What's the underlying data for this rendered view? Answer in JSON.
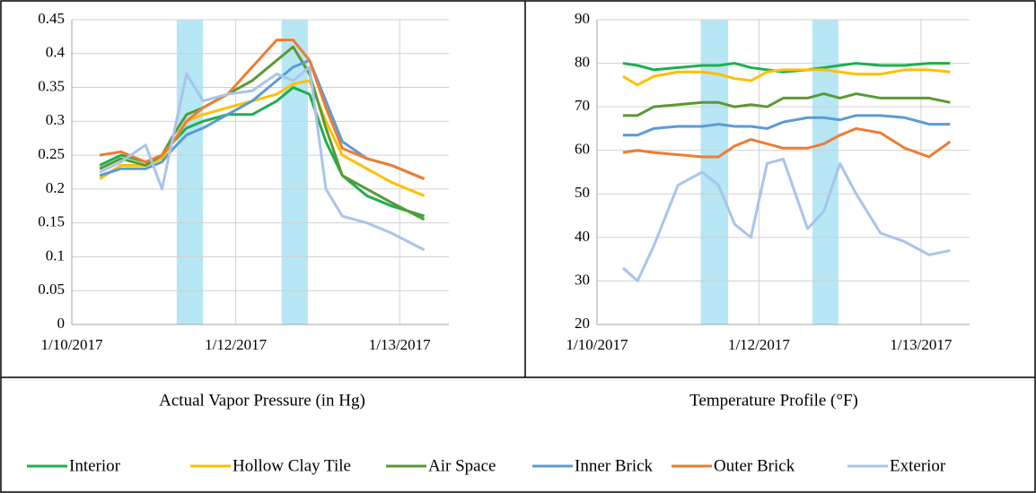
{
  "chart_data": [
    {
      "type": "line",
      "title": "Actual Vapor Pressure (in Hg)",
      "x": [
        0.17,
        0.3,
        0.45,
        0.55,
        0.62,
        0.7,
        0.8,
        0.95,
        1.1,
        1.25,
        1.35,
        1.45,
        1.55,
        1.65,
        1.8,
        1.95,
        2.15
      ],
      "xlim": [
        0,
        2.3
      ],
      "xticks": [
        {
          "value": 0,
          "label": "1/10/2017"
        },
        {
          "value": 1,
          "label": "1/12/2017"
        },
        {
          "value": 2,
          "label": "1/13/2017"
        }
      ],
      "ylim": [
        0,
        0.45
      ],
      "yticks": [
        0,
        0.05,
        0.1,
        0.15,
        0.2,
        0.25,
        0.3,
        0.35,
        0.4,
        0.45
      ],
      "grid": true,
      "band_color": "#b7e6f5",
      "bands": [
        [
          0.64,
          0.8
        ],
        [
          1.28,
          1.44
        ]
      ],
      "series": [
        {
          "name": "Interior",
          "color": "#1fae4f",
          "values": [
            0.235,
            0.25,
            0.24,
            0.25,
            0.27,
            0.29,
            0.3,
            0.31,
            0.31,
            0.33,
            0.35,
            0.34,
            0.27,
            0.22,
            0.19,
            0.175,
            0.16
          ]
        },
        {
          "name": "Hollow Clay Tile",
          "color": "#ffc000",
          "values": [
            0.215,
            0.235,
            0.235,
            0.245,
            0.27,
            0.3,
            0.31,
            0.32,
            0.33,
            0.34,
            0.355,
            0.36,
            0.3,
            0.25,
            0.23,
            0.21,
            0.19
          ]
        },
        {
          "name": "Air Space",
          "color": "#5a9a32",
          "values": [
            0.23,
            0.245,
            0.235,
            0.25,
            0.28,
            0.31,
            0.32,
            0.34,
            0.36,
            0.39,
            0.41,
            0.37,
            0.29,
            0.22,
            0.2,
            0.18,
            0.155
          ]
        },
        {
          "name": "Inner Brick",
          "color": "#5b9bd5",
          "values": [
            0.22,
            0.23,
            0.23,
            0.24,
            0.26,
            0.28,
            0.29,
            0.31,
            0.33,
            0.36,
            0.38,
            0.39,
            0.33,
            0.27,
            0.245,
            0.235,
            0.215
          ]
        },
        {
          "name": "Outer Brick",
          "color": "#ed7d31",
          "values": [
            0.25,
            0.255,
            0.24,
            0.25,
            0.27,
            0.3,
            0.32,
            0.34,
            0.38,
            0.42,
            0.42,
            0.39,
            0.32,
            0.26,
            0.245,
            0.235,
            0.215
          ]
        },
        {
          "name": "Exterior",
          "color": "#a9c4eb",
          "values": [
            0.225,
            0.24,
            0.265,
            0.2,
            0.28,
            0.37,
            0.33,
            0.34,
            0.345,
            0.37,
            0.36,
            0.38,
            0.2,
            0.16,
            0.15,
            0.135,
            0.11
          ]
        }
      ]
    },
    {
      "type": "line",
      "title": "Temperature Profile (°F)",
      "x": [
        0.16,
        0.25,
        0.35,
        0.5,
        0.65,
        0.75,
        0.85,
        0.95,
        1.05,
        1.15,
        1.3,
        1.4,
        1.5,
        1.6,
        1.75,
        1.9,
        2.05,
        2.18
      ],
      "xlim": [
        0,
        2.3
      ],
      "xticks": [
        {
          "value": 0,
          "label": "1/10/2017"
        },
        {
          "value": 1,
          "label": "1/12/2017"
        },
        {
          "value": 2,
          "label": "1/13/2017"
        }
      ],
      "ylim": [
        20,
        90
      ],
      "yticks": [
        20,
        30,
        40,
        50,
        60,
        70,
        80,
        90
      ],
      "grid": true,
      "band_color": "#b7e6f5",
      "bands": [
        [
          0.64,
          0.81
        ],
        [
          1.33,
          1.49
        ]
      ],
      "series": [
        {
          "name": "Interior",
          "color": "#1fae4f",
          "values": [
            80,
            79.5,
            78.5,
            79,
            79.5,
            79.5,
            80,
            79,
            78.5,
            78,
            78.5,
            79,
            79.5,
            80,
            79.5,
            79.5,
            80,
            80
          ]
        },
        {
          "name": "Hollow Clay Tile",
          "color": "#ffc000",
          "values": [
            77,
            75,
            77,
            78,
            78,
            77.5,
            76.5,
            76,
            78,
            78.5,
            78.5,
            78.5,
            78,
            77.5,
            77.5,
            78.5,
            78.5,
            78
          ]
        },
        {
          "name": "Air Space",
          "color": "#5a9a32",
          "values": [
            68,
            68,
            70,
            70.5,
            71,
            71,
            70,
            70.5,
            70,
            72,
            72,
            73,
            72,
            73,
            72,
            72,
            72,
            71
          ]
        },
        {
          "name": "Inner Brick",
          "color": "#5b9bd5",
          "values": [
            63.5,
            63.5,
            65,
            65.5,
            65.5,
            66,
            65.5,
            65.5,
            65,
            66.5,
            67.5,
            67.5,
            67,
            68,
            68,
            67.5,
            66,
            66
          ]
        },
        {
          "name": "Outer Brick",
          "color": "#ed7d31",
          "values": [
            59.5,
            60,
            59.5,
            59,
            58.5,
            58.5,
            61,
            62.5,
            61.5,
            60.5,
            60.5,
            61.5,
            63.5,
            65,
            64,
            60.5,
            58.5,
            62
          ]
        },
        {
          "name": "Exterior",
          "color": "#a9c4eb",
          "values": [
            33,
            30,
            38,
            52,
            55,
            52,
            43,
            40,
            57,
            58,
            42,
            46,
            57,
            50,
            41,
            39,
            36,
            37
          ]
        }
      ]
    }
  ]
}
